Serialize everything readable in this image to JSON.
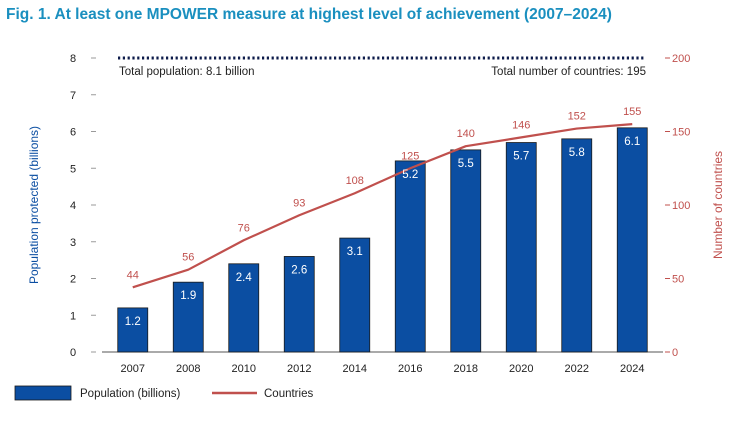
{
  "chart_data": {
    "type": "bar+line",
    "title": "Fig. 1. At least one MPOWER measure at highest level of achievement (2007–2024)",
    "categories": [
      "2007",
      "2008",
      "2010",
      "2012",
      "2014",
      "2016",
      "2018",
      "2020",
      "2022",
      "2024"
    ],
    "series": [
      {
        "name": "Population (billions)",
        "type": "bar",
        "axis": "left",
        "values": [
          1.2,
          1.9,
          2.4,
          2.6,
          3.1,
          5.2,
          5.5,
          5.7,
          5.8,
          6.1
        ],
        "labels": [
          "1.2",
          "1.9",
          "2.4",
          "2.6",
          "3.1",
          "5.2",
          "5.5",
          "5.7",
          "5.8",
          "6.1"
        ]
      },
      {
        "name": "Countries",
        "type": "line",
        "axis": "right",
        "values": [
          44,
          56,
          76,
          93,
          108,
          125,
          140,
          146,
          152,
          155
        ],
        "labels": [
          "44",
          "56",
          "76",
          "93",
          "108",
          "125",
          "140",
          "146",
          "152",
          "155"
        ]
      }
    ],
    "y_left": {
      "label": "Population protected (billions)",
      "range": [
        0,
        8
      ],
      "ticks": [
        "0",
        "1",
        "2",
        "3",
        "4",
        "5",
        "6",
        "7",
        "8"
      ]
    },
    "y_right": {
      "label": "Number of countries",
      "range": [
        0,
        200
      ],
      "ticks": [
        "0",
        "50",
        "100",
        "150",
        "200"
      ]
    },
    "reference_line": {
      "value_left": 8,
      "left_text": "Total population: 8.1 billion",
      "right_text": "Total number of countries: 195"
    },
    "legend": {
      "placement": "bottom-left",
      "items": [
        "Population (billions)",
        "Countries"
      ]
    },
    "colors": {
      "title": "#1a8fbf",
      "bar": "#0b4ea2",
      "bar_edge": "#1a1a1a",
      "line": "#c0504d",
      "left_axis": "#0b4ea2",
      "right_axis": "#c0504d",
      "text": "#222222"
    }
  }
}
